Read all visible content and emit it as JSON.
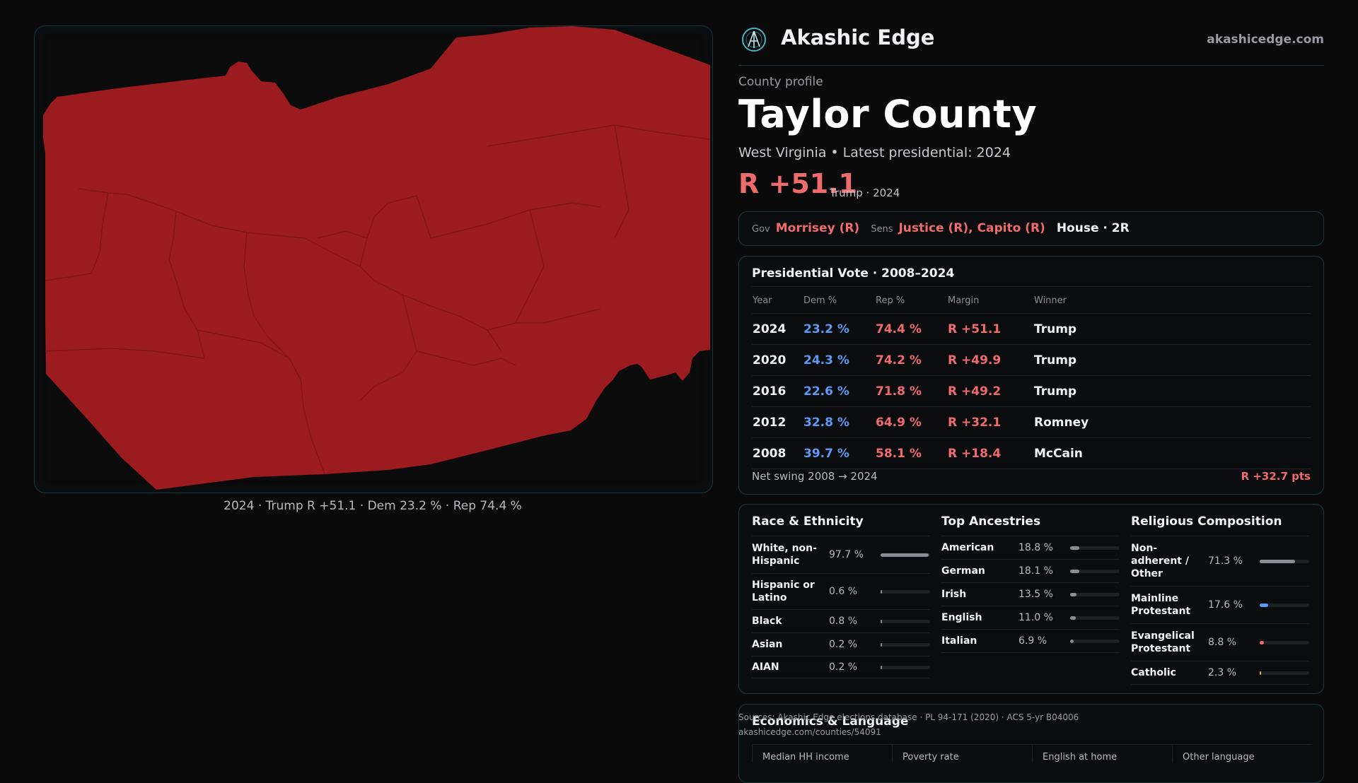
{
  "map": {
    "caption": "2024 · Trump R +51.1 · Dem 23.2 % · Rep 74.4 %",
    "fill_color": "#9b1b1e"
  },
  "header": {
    "brand": "Akashic Edge",
    "site": "akashicedge.com",
    "logo_icon": "akashic-logo-icon"
  },
  "profile": {
    "kicker": "County profile",
    "title": "Taylor County",
    "subline": "West Virginia • Latest presidential: 2024",
    "margin": "R +51.1",
    "margin_note": "Trump · 2024"
  },
  "officials": {
    "gov_label": "Gov",
    "gov": "Morrisey (R)",
    "sens_label": "Sens",
    "sens": "Justice (R), Capito (R)",
    "house": "House · 2R"
  },
  "presidential": {
    "title": "Presidential Vote · 2008–2024",
    "columns": [
      "Year",
      "Dem %",
      "Rep %",
      "Margin",
      "Winner"
    ],
    "rows": [
      {
        "year": "2024",
        "dem": "23.2 %",
        "rep": "74.4 %",
        "margin": "R +51.1",
        "winner": "Trump"
      },
      {
        "year": "2020",
        "dem": "24.3 %",
        "rep": "74.2 %",
        "margin": "R +49.9",
        "winner": "Trump"
      },
      {
        "year": "2016",
        "dem": "22.6 %",
        "rep": "71.8 %",
        "margin": "R +49.2",
        "winner": "Trump"
      },
      {
        "year": "2012",
        "dem": "32.8 %",
        "rep": "64.9 %",
        "margin": "R +32.1",
        "winner": "Romney"
      },
      {
        "year": "2008",
        "dem": "39.7 %",
        "rep": "58.1 %",
        "margin": "R +18.4",
        "winner": "McCain"
      }
    ],
    "swing_label": "Net swing 2008 → 2024",
    "swing_value": "R +32.7 pts"
  },
  "race": {
    "title": "Race & Ethnicity",
    "items": [
      {
        "name": "White, non-Hispanic",
        "pct": "97.7 %",
        "share": 0.977,
        "color": "#8a8d93"
      },
      {
        "name": "Hispanic or Latino",
        "pct": "0.6 %",
        "share": 0.006,
        "color": "#8a8d93"
      },
      {
        "name": "Black",
        "pct": "0.8 %",
        "share": 0.008,
        "color": "#8a8d93"
      },
      {
        "name": "Asian",
        "pct": "0.2 %",
        "share": 0.002,
        "color": "#8a8d93"
      },
      {
        "name": "AIAN",
        "pct": "0.2 %",
        "share": 0.002,
        "color": "#8a8d93"
      }
    ]
  },
  "ancestry": {
    "title": "Top Ancestries",
    "items": [
      {
        "name": "American",
        "pct": "18.8 %",
        "share": 0.188,
        "color": "#8a8d93"
      },
      {
        "name": "German",
        "pct": "18.1 %",
        "share": 0.181,
        "color": "#8a8d93"
      },
      {
        "name": "Irish",
        "pct": "13.5 %",
        "share": 0.135,
        "color": "#8a8d93"
      },
      {
        "name": "English",
        "pct": "11.0 %",
        "share": 0.11,
        "color": "#8a8d93"
      },
      {
        "name": "Italian",
        "pct": "6.9 %",
        "share": 0.069,
        "color": "#8a8d93"
      }
    ]
  },
  "religion": {
    "title": "Religious Composition",
    "items": [
      {
        "name": "Non-adherent / Other",
        "pct": "71.3 %",
        "share": 0.713,
        "color": "#8a8d93"
      },
      {
        "name": "Mainline Protestant",
        "pct": "17.6 %",
        "share": 0.176,
        "color": "#5b9bf5"
      },
      {
        "name": "Evangelical Protestant",
        "pct": "8.8 %",
        "share": 0.088,
        "color": "#f06b6b"
      },
      {
        "name": "Catholic",
        "pct": "2.3 %",
        "share": 0.023,
        "color": "#e0a94a"
      }
    ]
  },
  "economics": {
    "title": "Economics & Language",
    "columns": [
      "Median HH income",
      "Poverty rate",
      "English at home",
      "Other language"
    ]
  },
  "sources": {
    "line1": "Sources: Akashic Edge elections database · PL 94-171 (2020) · ACS 5-yr B04006",
    "line2": "akashicedge.com/counties/54091"
  },
  "colors": {
    "dem": "#5b9bf5",
    "rep": "#f06b6b",
    "border": "#1a3a40"
  }
}
